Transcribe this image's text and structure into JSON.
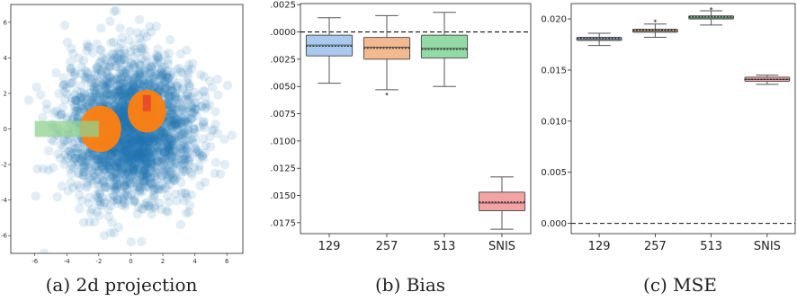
{
  "captions": {
    "a": "(a) 2d projection",
    "b": "(b) Bias",
    "c": "(c) MSE"
  },
  "colors": {
    "scatter": "#1f77b4",
    "orange": "#ff7f0e",
    "green_rect": "#8fd18f",
    "red_rect": "#e8432a",
    "box_blue": "#a9c9ef",
    "box_orange": "#f3b990",
    "box_green": "#93dba6",
    "box_red": "#f4a3a3"
  },
  "chart_data": [
    {
      "type": "scatter",
      "title": "",
      "xlabel": "",
      "ylabel": "",
      "xlim": [
        -7.5,
        7
      ],
      "ylim": [
        -7,
        7
      ],
      "xticks": [
        -6,
        -4,
        -2,
        0,
        2,
        4,
        6
      ],
      "yticks": [
        -6,
        -4,
        -2,
        0,
        2,
        4,
        6
      ],
      "grid": false,
      "scatter_spread_sd": 2.0,
      "highlights": [
        {
          "kind": "circle",
          "cx": -1.9,
          "cy": 0.0,
          "r": 1.3
        },
        {
          "kind": "circle",
          "cx": 1.0,
          "cy": 1.0,
          "r": 1.2
        },
        {
          "kind": "rect",
          "x0": -6.0,
          "x1": -2.0,
          "y0": -0.45,
          "y1": 0.45
        },
        {
          "kind": "rect",
          "x0": 0.75,
          "x1": 1.25,
          "y0": 1.0,
          "y1": 1.9
        }
      ]
    },
    {
      "type": "box",
      "title": "",
      "xlabel": "",
      "ylabel": "",
      "categories": [
        "129",
        "257",
        "513",
        "SNIS"
      ],
      "ylim": [
        -0.0185,
        0.0026
      ],
      "yticks": [
        0.0025,
        0.0,
        -0.0025,
        -0.005,
        -0.0075,
        -0.01,
        -0.0125,
        -0.015,
        -0.0175
      ],
      "ytick_labels": [
        ".0025",
        ".0000",
        ".0025",
        ".0050",
        ".0075",
        ".0100",
        ".0125",
        ".0150",
        ".0175"
      ],
      "reference_line": 0.0,
      "boxes": [
        {
          "whisker_low": -0.0047,
          "q1": -0.0022,
          "median": -0.0012,
          "q3": -0.0003,
          "whisker_high": 0.0013,
          "mean": -0.0013,
          "outliers": []
        },
        {
          "whisker_low": -0.0053,
          "q1": -0.0025,
          "median": -0.0014,
          "q3": -0.0005,
          "whisker_high": 0.0015,
          "mean": -0.0015,
          "outliers": [
            -0.0057
          ]
        },
        {
          "whisker_low": -0.005,
          "q1": -0.0024,
          "median": -0.0015,
          "q3": -0.0003,
          "whisker_high": 0.0018,
          "mean": -0.0016,
          "outliers": []
        },
        {
          "whisker_low": -0.0181,
          "q1": -0.0164,
          "median": -0.0157,
          "q3": -0.0147,
          "whisker_high": -0.0133,
          "mean": -0.0156,
          "outliers": []
        }
      ]
    },
    {
      "type": "box",
      "title": "",
      "xlabel": "",
      "ylabel": "",
      "categories": [
        "129",
        "257",
        "513",
        "SNIS"
      ],
      "ylim": [
        -0.001,
        0.0215
      ],
      "yticks": [
        0.0,
        0.005,
        0.01,
        0.015,
        0.02
      ],
      "ytick_labels": [
        "0.000",
        "0.005",
        "0.010",
        "0.015",
        "0.020"
      ],
      "reference_line": 0.0,
      "boxes": [
        {
          "whisker_low": 0.0174,
          "q1": 0.0179,
          "median": 0.018,
          "q3": 0.0182,
          "whisker_high": 0.0186,
          "mean": 0.0181,
          "outliers": []
        },
        {
          "whisker_low": 0.0182,
          "q1": 0.0187,
          "median": 0.0188,
          "q3": 0.019,
          "whisker_high": 0.0195,
          "mean": 0.0189,
          "outliers": [
            0.0198
          ]
        },
        {
          "whisker_low": 0.0194,
          "q1": 0.02,
          "median": 0.0201,
          "q3": 0.0203,
          "whisker_high": 0.0208,
          "mean": 0.0202,
          "outliers": [
            0.021
          ]
        },
        {
          "whisker_low": 0.0136,
          "q1": 0.0139,
          "median": 0.0141,
          "q3": 0.0143,
          "whisker_high": 0.0145,
          "mean": 0.0141,
          "outliers": []
        }
      ]
    }
  ]
}
